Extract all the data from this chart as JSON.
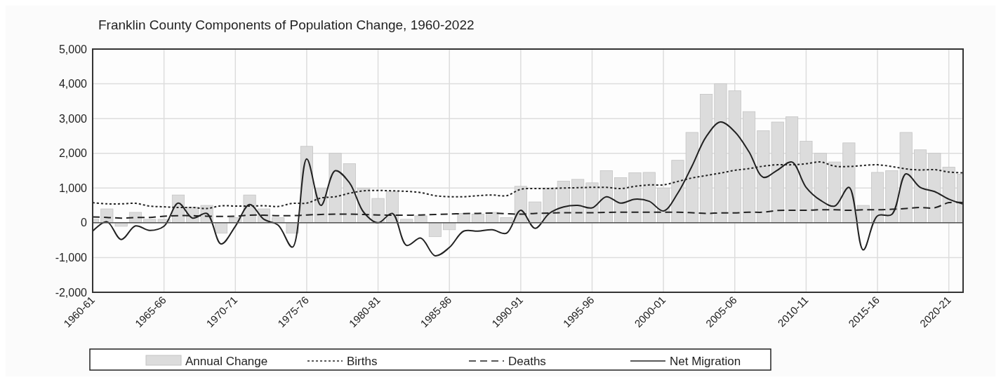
{
  "chart_data": {
    "type": "bar",
    "title": "Franklin County Components of Population Change, 1960-2022",
    "categories": [
      "1960-61",
      null,
      null,
      null,
      null,
      "1965-66",
      null,
      null,
      null,
      null,
      "1970-71",
      null,
      null,
      null,
      null,
      "1975-76",
      null,
      null,
      null,
      null,
      "1980-81",
      null,
      null,
      null,
      null,
      "1985-86",
      null,
      null,
      null,
      null,
      "1990-91",
      null,
      null,
      null,
      null,
      "1995-96",
      null,
      null,
      null,
      null,
      "2000-01",
      null,
      null,
      null,
      null,
      "2005-06",
      null,
      null,
      null,
      null,
      "2010-11",
      null,
      null,
      null,
      null,
      "2015-16",
      null,
      null,
      null,
      null,
      "2020-21",
      null
    ],
    "series": [
      {
        "name": "Annual Change",
        "color": "#dcdcdc",
        "values": [
          100,
          400,
          -100,
          300,
          100,
          100,
          800,
          450,
          500,
          -300,
          150,
          800,
          400,
          150,
          -300,
          2200,
          1000,
          2000,
          1700,
          1000,
          700,
          900,
          100,
          200,
          -400,
          -200,
          270,
          250,
          300,
          150,
          1050,
          600,
          1000,
          1200,
          1250,
          1150,
          1500,
          1300,
          1440,
          1450,
          1000,
          1800,
          2600,
          3700,
          4000,
          3800,
          3200,
          2650,
          2900,
          3050,
          2350,
          2000,
          1750,
          2300,
          500,
          1450,
          1500,
          2600,
          2100,
          2000,
          1600,
          1400
        ]
      },
      {
        "name": "Births",
        "type": "line",
        "line_style": "dotted",
        "color": "#222222",
        "values": [
          580,
          545,
          545,
          560,
          480,
          460,
          440,
          440,
          410,
          490,
          480,
          480,
          490,
          470,
          560,
          565,
          715,
          750,
          850,
          920,
          930,
          920,
          905,
          870,
          780,
          750,
          750,
          780,
          800,
          780,
          965,
          985,
          985,
          1000,
          1010,
          1020,
          1020,
          985,
          1050,
          1090,
          1090,
          1190,
          1290,
          1360,
          1430,
          1510,
          1560,
          1630,
          1670,
          1670,
          1700,
          1750,
          1630,
          1620,
          1650,
          1670,
          1620,
          1550,
          1520,
          1530,
          1460,
          1440
        ]
      },
      {
        "name": "Deaths",
        "type": "line",
        "line_style": "dashed",
        "color": "#222222",
        "values": [
          170,
          155,
          135,
          150,
          155,
          190,
          205,
          205,
          190,
          185,
          190,
          220,
          220,
          205,
          205,
          225,
          240,
          250,
          250,
          240,
          225,
          220,
          220,
          225,
          240,
          250,
          265,
          270,
          280,
          260,
          250,
          270,
          280,
          290,
          290,
          290,
          300,
          305,
          305,
          305,
          305,
          305,
          290,
          270,
          285,
          285,
          305,
          305,
          355,
          360,
          360,
          375,
          375,
          360,
          375,
          375,
          390,
          410,
          440,
          430,
          580,
          580
        ]
      },
      {
        "name": "Net Migration",
        "type": "line",
        "line_style": "solid",
        "color": "#222222",
        "values": [
          -240,
          30,
          -480,
          -90,
          -220,
          -100,
          565,
          135,
          270,
          -610,
          -100,
          525,
          100,
          -70,
          -700,
          1840,
          500,
          1500,
          1150,
          300,
          0,
          270,
          -650,
          -440,
          -950,
          -710,
          -240,
          -240,
          -200,
          -300,
          360,
          -160,
          270,
          455,
          500,
          430,
          750,
          565,
          680,
          620,
          340,
          850,
          1630,
          2480,
          2900,
          2620,
          2040,
          1310,
          1520,
          1750,
          1020,
          650,
          480,
          1020,
          -780,
          200,
          240,
          1410,
          1020,
          900,
          680,
          540
        ]
      }
    ],
    "ylim": [
      -2000,
      5000
    ],
    "yticks": [
      {
        "value": -2000,
        "label": "-2,000"
      },
      {
        "value": -1000,
        "label": "-1,000"
      },
      0,
      {
        "value": 1000,
        "label": "1,000"
      },
      {
        "value": 2000,
        "label": "2,000"
      },
      {
        "value": 3000,
        "label": "3,000"
      },
      {
        "value": 4000,
        "label": "4,000"
      },
      {
        "value": 5000,
        "label": "5,000"
      }
    ],
    "grid": true,
    "legend": "bottom"
  }
}
